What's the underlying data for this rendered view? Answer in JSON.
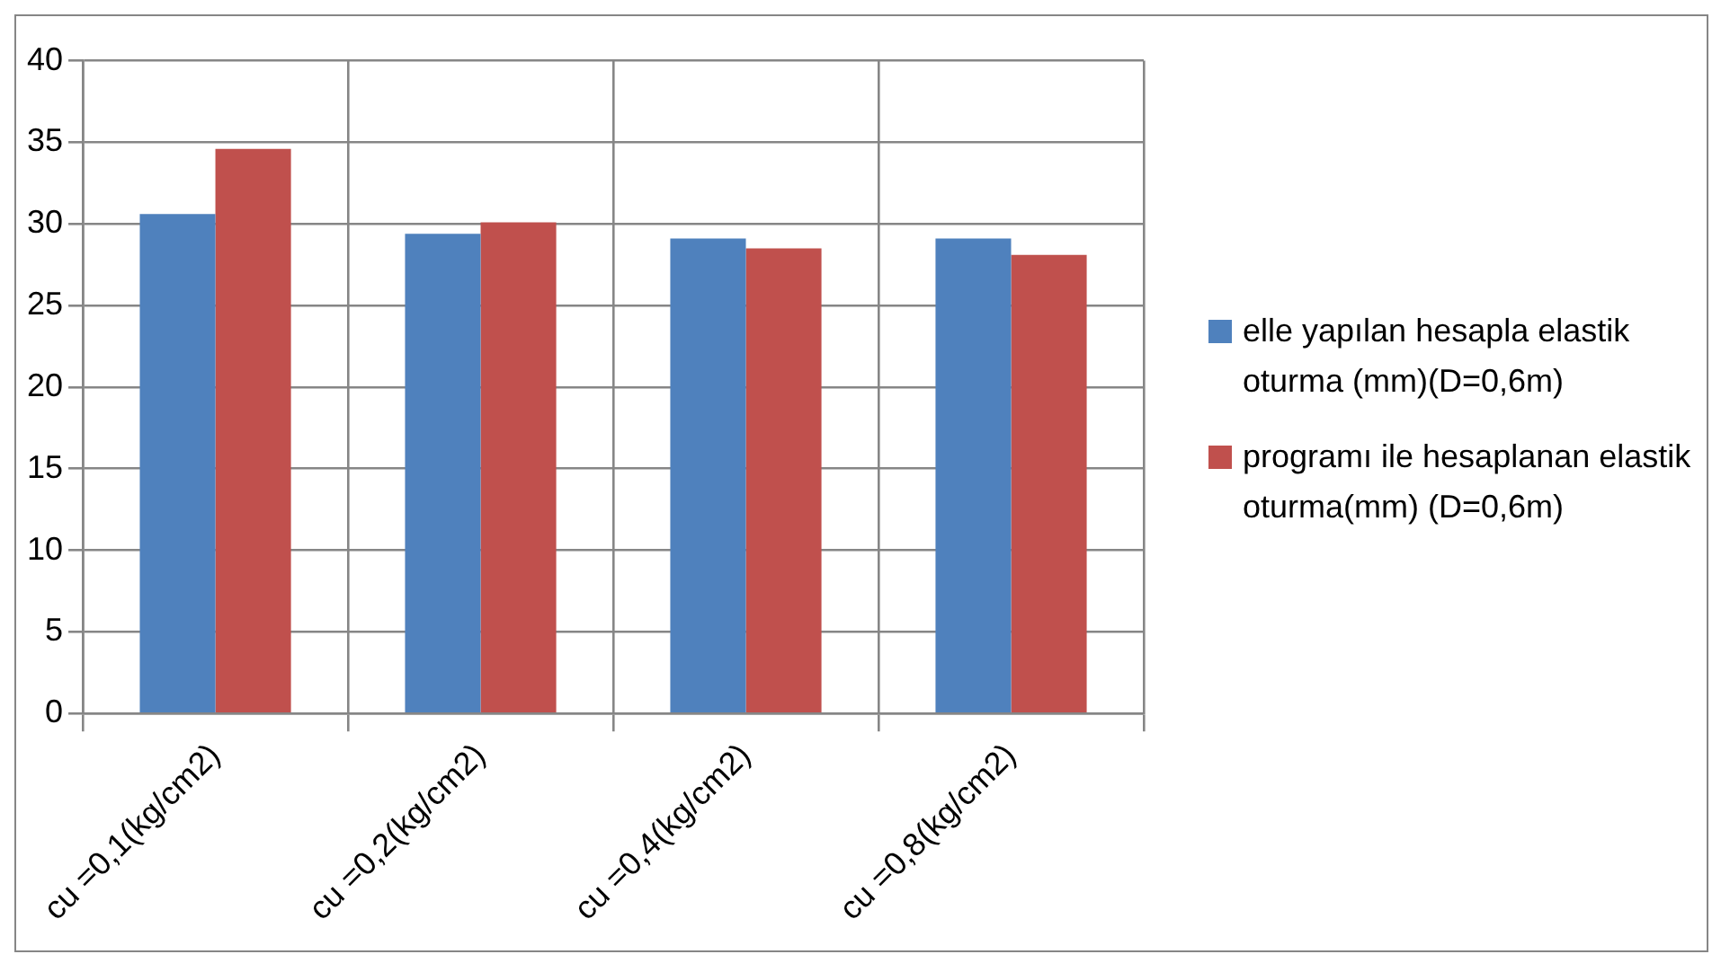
{
  "chart_data": {
    "type": "bar",
    "categories": [
      "cu =0,1(kg/cm2)",
      "cu =0,2(kg/cm2)",
      "cu =0,4(kg/cm2)",
      "cu =0,8(kg/cm2)"
    ],
    "series": [
      {
        "name": "elle yapılan hesapla elastik oturma (mm)(D=0,6m)",
        "color": "#4f81bd",
        "values": [
          30.6,
          29.4,
          29.1,
          29.1
        ]
      },
      {
        "name": "programı ile hesaplanan elastik oturma(mm) (D=0,6m)",
        "color": "#c0504d",
        "values": [
          34.6,
          30.1,
          28.5,
          28.1
        ]
      }
    ],
    "ylim": [
      0,
      40
    ],
    "yticks": [
      0,
      5,
      10,
      15,
      20,
      25,
      30,
      35,
      40
    ],
    "grid": true,
    "legend": "right"
  }
}
